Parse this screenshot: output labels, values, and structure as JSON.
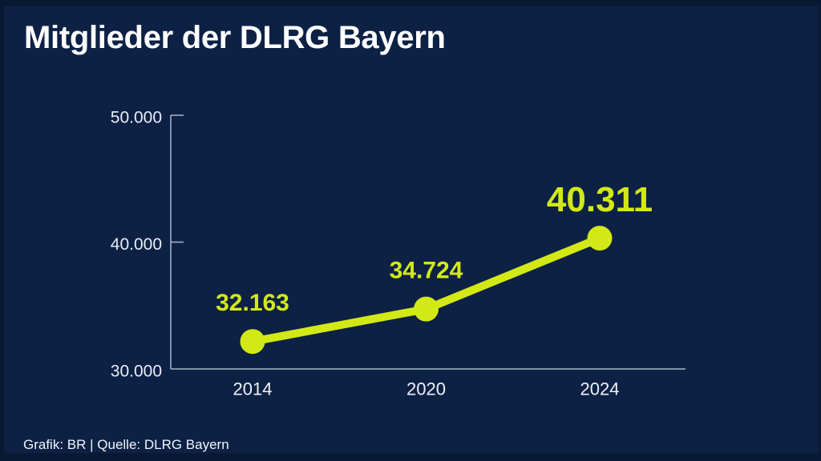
{
  "page": {
    "title": "Mitglieder der DLRG Bayern",
    "footer": "Grafik: BR | Quelle: DLRG Bayern"
  },
  "colors": {
    "background": "#0d2145",
    "frame": "#081a33",
    "accent": "#d3e916",
    "axis": "#a9b7ca",
    "text": "#ffffff"
  },
  "chart_data": {
    "type": "line",
    "title": "Mitglieder der DLRG Bayern",
    "categories": [
      "2014",
      "2020",
      "2024"
    ],
    "values": [
      32163,
      34724,
      40311
    ],
    "value_labels": [
      "32.163",
      "34.724",
      "40.311"
    ],
    "highlight_index": 2,
    "xlabel": "",
    "ylabel": "",
    "ylim": [
      30000,
      50000
    ],
    "yticks": [
      30000,
      40000,
      50000
    ],
    "ytick_labels": [
      "30.000",
      "40.000",
      "50.000"
    ],
    "grid": false,
    "legend": false,
    "line_color": "#d3e916",
    "marker": "circle",
    "source": "Grafik: BR | Quelle: DLRG Bayern"
  }
}
